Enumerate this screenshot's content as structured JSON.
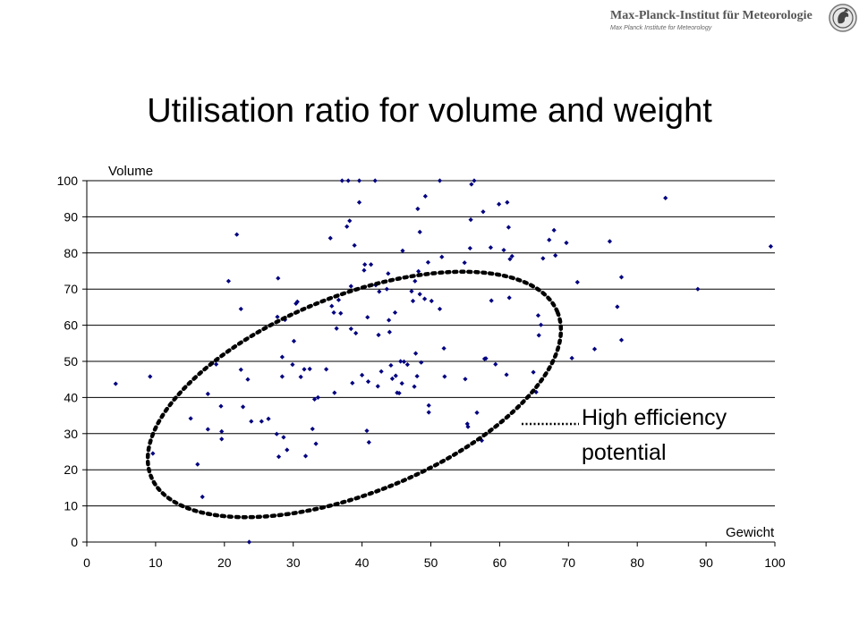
{
  "header": {
    "logo_title": "Max-Planck-Institut für Meteorologie",
    "logo_subtitle": "Max Planck Institute for Meteorology",
    "logo_icon": "mpi-minerva-emblem-icon"
  },
  "slide": {
    "title": "Utilisation ratio for volume and weight"
  },
  "annotation": {
    "lines": [
      "High efficiency",
      "potential"
    ],
    "shape": "dotted-ellipse"
  },
  "chart_data": {
    "type": "scatter",
    "title": "",
    "xlabel": "Gewicht",
    "ylabel": "Volume",
    "xlim": [
      0,
      100
    ],
    "ylim": [
      0,
      100
    ],
    "xticks": [
      0,
      10,
      20,
      30,
      40,
      50,
      60,
      70,
      80,
      90,
      100
    ],
    "yticks": [
      0,
      10,
      20,
      30,
      40,
      50,
      60,
      70,
      80,
      90,
      100
    ],
    "grid": "horizontal",
    "legend": "none",
    "marker_color": "#00007f",
    "series": [
      {
        "values": [
          [
            4.2,
            43.8
          ],
          [
            9.2,
            45.8
          ],
          [
            9.6,
            24.5
          ],
          [
            15.1,
            34.2
          ],
          [
            16.1,
            21.5
          ],
          [
            16.8,
            12.5
          ],
          [
            17.6,
            41.0
          ],
          [
            17.6,
            31.2
          ],
          [
            18.8,
            49.2
          ],
          [
            19.5,
            37.6
          ],
          [
            19.6,
            30.6
          ],
          [
            19.6,
            28.5
          ],
          [
            20.6,
            72.2
          ],
          [
            21.8,
            85.1
          ],
          [
            22.4,
            64.5
          ],
          [
            22.4,
            47.7
          ],
          [
            22.7,
            37.4
          ],
          [
            23.4,
            45.0
          ],
          [
            23.6,
            0.0
          ],
          [
            23.9,
            33.4
          ],
          [
            25.4,
            33.4
          ],
          [
            26.4,
            34.1
          ],
          [
            27.6,
            29.9
          ],
          [
            27.7,
            62.3
          ],
          [
            27.8,
            73.0
          ],
          [
            27.9,
            23.6
          ],
          [
            28.4,
            51.2
          ],
          [
            28.4,
            45.8
          ],
          [
            28.6,
            29.0
          ],
          [
            28.8,
            61.5
          ],
          [
            29.1,
            25.5
          ],
          [
            29.9,
            49.1
          ],
          [
            30.1,
            55.6
          ],
          [
            30.4,
            66.0
          ],
          [
            30.6,
            66.5
          ],
          [
            31.1,
            45.7
          ],
          [
            31.6,
            47.8
          ],
          [
            31.8,
            23.8
          ],
          [
            32.4,
            47.9
          ],
          [
            32.8,
            31.3
          ],
          [
            33.1,
            39.5
          ],
          [
            33.3,
            27.2
          ],
          [
            33.6,
            40.0
          ],
          [
            34.8,
            47.8
          ],
          [
            35.4,
            84.1
          ],
          [
            35.6,
            65.3
          ],
          [
            35.9,
            63.5
          ],
          [
            36.0,
            41.3
          ],
          [
            36.3,
            59.1
          ],
          [
            36.6,
            67.0
          ],
          [
            36.9,
            63.3
          ],
          [
            37.1,
            100.0
          ],
          [
            37.8,
            87.3
          ],
          [
            38.0,
            100.0
          ],
          [
            38.2,
            88.9
          ],
          [
            38.4,
            70.8
          ],
          [
            38.4,
            59.0
          ],
          [
            38.6,
            44.0
          ],
          [
            38.9,
            82.1
          ],
          [
            39.1,
            57.8
          ],
          [
            39.6,
            100.0
          ],
          [
            39.6,
            94.0
          ],
          [
            40.0,
            46.2
          ],
          [
            40.3,
            75.2
          ],
          [
            40.4,
            76.8
          ],
          [
            40.7,
            30.8
          ],
          [
            40.8,
            62.2
          ],
          [
            40.9,
            44.4
          ],
          [
            41.0,
            27.6
          ],
          [
            41.3,
            76.8
          ],
          [
            41.9,
            100.0
          ],
          [
            42.0,
            71.1
          ],
          [
            42.3,
            43.1
          ],
          [
            42.4,
            57.3
          ],
          [
            42.5,
            69.3
          ],
          [
            42.8,
            47.2
          ],
          [
            43.6,
            70.0
          ],
          [
            43.8,
            74.3
          ],
          [
            43.9,
            61.4
          ],
          [
            44.0,
            58.1
          ],
          [
            44.2,
            48.9
          ],
          [
            44.4,
            45.2
          ],
          [
            44.8,
            63.5
          ],
          [
            44.9,
            46.0
          ],
          [
            45.1,
            41.3
          ],
          [
            45.4,
            41.2
          ],
          [
            45.6,
            50.0
          ],
          [
            45.8,
            43.9
          ],
          [
            45.9,
            80.6
          ],
          [
            46.1,
            49.9
          ],
          [
            46.6,
            49.1
          ],
          [
            47.2,
            69.4
          ],
          [
            47.4,
            66.7
          ],
          [
            47.6,
            43.0
          ],
          [
            47.7,
            72.2
          ],
          [
            47.8,
            52.2
          ],
          [
            48.0,
            45.9
          ],
          [
            48.1,
            92.2
          ],
          [
            48.2,
            74.9
          ],
          [
            48.4,
            85.8
          ],
          [
            48.4,
            68.6
          ],
          [
            48.6,
            49.7
          ],
          [
            49.1,
            67.3
          ],
          [
            49.2,
            95.7
          ],
          [
            49.6,
            77.4
          ],
          [
            49.7,
            35.9
          ],
          [
            49.7,
            37.8
          ],
          [
            50.1,
            66.7
          ],
          [
            51.3,
            100.0
          ],
          [
            51.3,
            64.5
          ],
          [
            51.6,
            78.9
          ],
          [
            51.9,
            53.6
          ],
          [
            52.0,
            45.8
          ],
          [
            54.9,
            77.3
          ],
          [
            55.0,
            45.1
          ],
          [
            55.3,
            32.7
          ],
          [
            55.4,
            31.9
          ],
          [
            55.7,
            81.3
          ],
          [
            55.8,
            89.2
          ],
          [
            55.9,
            99.0
          ],
          [
            56.3,
            100.0
          ],
          [
            56.7,
            35.8
          ],
          [
            57.4,
            28.1
          ],
          [
            57.6,
            91.4
          ],
          [
            57.8,
            50.7
          ],
          [
            58.0,
            50.8
          ],
          [
            58.7,
            81.5
          ],
          [
            58.8,
            66.8
          ],
          [
            59.4,
            49.2
          ],
          [
            59.9,
            93.5
          ],
          [
            60.6,
            80.8
          ],
          [
            61.0,
            46.3
          ],
          [
            61.1,
            94.0
          ],
          [
            61.3,
            87.1
          ],
          [
            61.4,
            67.6
          ],
          [
            61.5,
            78.3
          ],
          [
            61.8,
            79.1
          ],
          [
            64.9,
            47.0
          ],
          [
            65.3,
            41.5
          ],
          [
            65.6,
            62.7
          ],
          [
            65.7,
            57.2
          ],
          [
            66.0,
            60.1
          ],
          [
            66.3,
            78.5
          ],
          [
            67.2,
            83.6
          ],
          [
            67.9,
            86.3
          ],
          [
            68.1,
            79.3
          ],
          [
            69.7,
            82.8
          ],
          [
            70.5,
            50.9
          ],
          [
            71.3,
            71.9
          ],
          [
            73.8,
            53.4
          ],
          [
            76.0,
            83.2
          ],
          [
            77.1,
            65.1
          ],
          [
            77.7,
            73.3
          ],
          [
            77.7,
            55.9
          ],
          [
            84.1,
            95.2
          ],
          [
            88.8,
            70.0
          ],
          [
            99.4,
            81.8
          ]
        ]
      }
    ]
  }
}
